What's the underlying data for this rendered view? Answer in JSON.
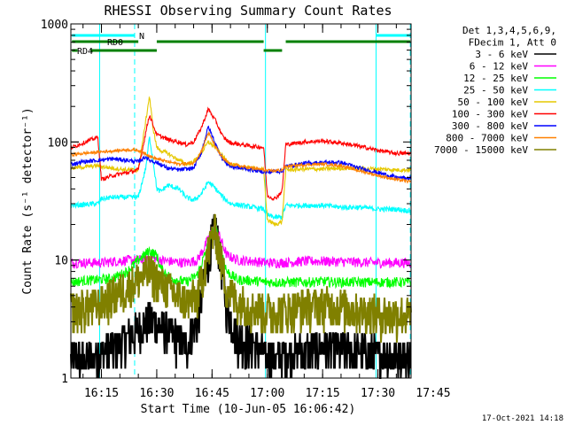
{
  "chart_data": {
    "type": "line",
    "title": "RHESSI Observing Summary Count Rates",
    "xlabel": "Start Time (10-Jun-05 16:06:42)",
    "ylabel": "Count Rate (s⁻¹ detector⁻¹)",
    "yscale": "log",
    "ylim": [
      1,
      1000
    ],
    "xlim": [
      6.7,
      99.0
    ],
    "x_units": "minutes after 16:00",
    "x_ticks": [
      {
        "value": 15,
        "label": "16:15"
      },
      {
        "value": 30,
        "label": "16:30"
      },
      {
        "value": 45,
        "label": "16:45"
      },
      {
        "value": 60,
        "label": "17:00"
      },
      {
        "value": 75,
        "label": "17:15"
      },
      {
        "value": 90,
        "label": "17:30"
      },
      {
        "value": 105,
        "label": "17:45"
      }
    ],
    "y_ticks": [
      {
        "value": 1,
        "label": "1"
      },
      {
        "value": 10,
        "label": "10"
      },
      {
        "value": 100,
        "label": "100"
      },
      {
        "value": 1000,
        "label": "1000"
      }
    ],
    "legend_header": [
      "Det 1,3,4,5,6,9,",
      "FDecim 1, Att 0"
    ],
    "series": [
      {
        "name": "3 - 6 keV",
        "color": "#000000",
        "x": [
          7,
          10,
          14,
          18,
          22,
          25,
          28,
          31,
          34,
          38,
          41,
          43,
          45,
          46,
          47,
          49,
          52,
          56,
          60,
          63,
          66,
          70,
          75,
          80,
          85,
          90,
          95,
          99
        ],
        "y": [
          1.5,
          1.4,
          1.6,
          1.8,
          2.2,
          2.6,
          3.2,
          2.8,
          2.4,
          1.9,
          3,
          7,
          16,
          19,
          12,
          4,
          2.2,
          2,
          1.5,
          1.5,
          1.6,
          1.7,
          1.9,
          1.8,
          1.7,
          1.6,
          1.6,
          1.5
        ]
      },
      {
        "name": "6 - 12 keV",
        "color": "#ff00ff",
        "x": [
          7,
          15,
          22,
          25,
          28,
          31,
          34,
          38,
          41,
          43,
          45,
          46,
          47,
          49,
          52,
          56,
          60,
          63,
          66,
          70,
          75,
          80,
          85,
          90,
          95,
          99
        ],
        "y": [
          9.5,
          9.5,
          10,
          10,
          10.5,
          10,
          9.7,
          9.5,
          10,
          13,
          18,
          19,
          16,
          11,
          10,
          9.8,
          9.5,
          9.5,
          9.6,
          9.8,
          9.8,
          9.7,
          9.6,
          9.5,
          9.5,
          9.5
        ]
      },
      {
        "name": "12 - 25 keV",
        "color": "#00ff00",
        "x": [
          7,
          10,
          14,
          18,
          22,
          25,
          28,
          30,
          31,
          34,
          38,
          41,
          43,
          45,
          46,
          47,
          49,
          52,
          56,
          60,
          63,
          66,
          70,
          75,
          80,
          85,
          90,
          95,
          99
        ],
        "y": [
          6.5,
          6.7,
          6.8,
          7,
          8,
          10,
          12,
          11,
          8.5,
          7,
          6.5,
          7.5,
          11,
          17,
          19,
          14,
          8,
          6.8,
          6.7,
          6.5,
          6.5,
          6.5,
          6.5,
          6.6,
          6.5,
          6.5,
          6.5,
          6.5,
          6.5
        ]
      },
      {
        "name": "25 - 50 keV",
        "color": "#00ffff",
        "x": [
          7,
          14,
          15,
          18,
          22,
          25,
          27,
          28,
          29,
          30,
          31,
          33,
          36,
          38,
          40,
          42,
          44,
          46,
          48,
          50,
          53,
          56,
          59,
          60,
          62,
          64,
          65,
          70,
          75,
          80,
          85,
          90,
          95,
          99
        ],
        "y": [
          29,
          30,
          33,
          34,
          34,
          34,
          60,
          110,
          70,
          40,
          38,
          43,
          40,
          34,
          32,
          36,
          46,
          40,
          34,
          30,
          29,
          28,
          27,
          24,
          23,
          23,
          29,
          29,
          29,
          28,
          28,
          27,
          27,
          26
        ]
      },
      {
        "name": "50 - 100 keV",
        "color": "#e6c800",
        "x": [
          7,
          14,
          15,
          18,
          22,
          25,
          27,
          28,
          29,
          30,
          31,
          33,
          36,
          38,
          40,
          42,
          44,
          46,
          48,
          50,
          53,
          56,
          59,
          60,
          62,
          64,
          65,
          70,
          75,
          80,
          85,
          90,
          95,
          99
        ],
        "y": [
          60,
          63,
          62,
          60,
          58,
          58,
          150,
          245,
          130,
          90,
          85,
          80,
          70,
          65,
          68,
          80,
          100,
          90,
          75,
          65,
          61,
          60,
          58,
          22,
          20,
          21,
          58,
          59,
          59,
          60,
          60,
          59,
          58,
          58
        ]
      },
      {
        "name": "100 - 300 keV",
        "color": "#ff0000",
        "x": [
          7,
          14,
          15,
          18,
          22,
          25,
          27,
          28,
          29,
          30,
          31,
          33,
          36,
          38,
          40,
          42,
          44,
          46,
          48,
          50,
          53,
          56,
          59,
          60,
          62,
          64,
          65,
          70,
          75,
          80,
          85,
          90,
          95,
          99
        ],
        "y": [
          90,
          110,
          48,
          52,
          55,
          58,
          120,
          170,
          140,
          115,
          112,
          105,
          100,
          95,
          100,
          130,
          190,
          150,
          110,
          98,
          95,
          92,
          90,
          35,
          33,
          38,
          95,
          100,
          102,
          98,
          92,
          85,
          80,
          80
        ]
      },
      {
        "name": "300 - 800 keV",
        "color": "#0000ff",
        "x": [
          7,
          10,
          14,
          18,
          22,
          25,
          27,
          28,
          30,
          33,
          36,
          40,
          42,
          44,
          46,
          48,
          50,
          53,
          56,
          59,
          60,
          62,
          64,
          65,
          70,
          75,
          80,
          85,
          90,
          95,
          99
        ],
        "y": [
          65,
          68,
          70,
          72,
          70,
          68,
          75,
          70,
          67,
          60,
          58,
          60,
          80,
          135,
          95,
          70,
          62,
          60,
          58,
          56,
          55,
          57,
          56,
          62,
          66,
          67,
          67,
          60,
          55,
          50,
          49
        ]
      },
      {
        "name": "800 - 7000 keV",
        "color": "#ff8000",
        "x": [
          7,
          10,
          14,
          18,
          22,
          25,
          27,
          28,
          30,
          33,
          36,
          40,
          42,
          44,
          46,
          48,
          50,
          53,
          56,
          59,
          60,
          62,
          64,
          65,
          70,
          75,
          80,
          85,
          90,
          95,
          99
        ],
        "y": [
          78,
          80,
          82,
          84,
          86,
          85,
          80,
          76,
          72,
          68,
          65,
          66,
          82,
          120,
          90,
          72,
          65,
          62,
          60,
          58,
          57,
          57,
          58,
          62,
          64,
          65,
          63,
          57,
          52,
          48,
          46
        ]
      },
      {
        "name": "7000 - 15000 keV",
        "color": "#808000",
        "x": [
          7,
          10,
          14,
          18,
          22,
          25,
          28,
          31,
          34,
          38,
          41,
          43,
          45,
          46,
          47,
          49,
          52,
          56,
          60,
          63,
          66,
          70,
          75,
          80,
          85,
          90,
          95,
          99
        ],
        "y": [
          3.8,
          4,
          4.2,
          5,
          6,
          7,
          8,
          6.5,
          5.5,
          4.5,
          5,
          9,
          16,
          18,
          12,
          6,
          4.5,
          4,
          3.8,
          3.8,
          3.8,
          4.2,
          4.2,
          4.1,
          3.8,
          3.6,
          3.5,
          3.5
        ]
      }
    ],
    "flags": [
      {
        "label": "N",
        "color": "#00ffff",
        "segments": [
          [
            7.0,
            24.0
          ],
          [
            89.5,
            98.8
          ]
        ]
      },
      {
        "label": "RD0",
        "color": "#008000",
        "segments": [
          [
            7.0,
            25.0
          ],
          [
            30.0,
            59.0
          ],
          [
            65.0,
            98.8
          ]
        ]
      },
      {
        "label": "RD4",
        "color": "#008000",
        "segments": [
          [
            7.0,
            8.5
          ],
          [
            12.0,
            30.0
          ],
          [
            59.0,
            64.0
          ]
        ]
      }
    ],
    "solid_vlines": {
      "color": "#00ffff",
      "x": [
        14.5,
        59.5,
        89.5
      ]
    },
    "dashed_vlines": {
      "color": "#00ffff",
      "x": [
        24.0,
        98.8
      ]
    }
  },
  "footer": {
    "timestamp": "17-Oct-2021 14:18"
  }
}
